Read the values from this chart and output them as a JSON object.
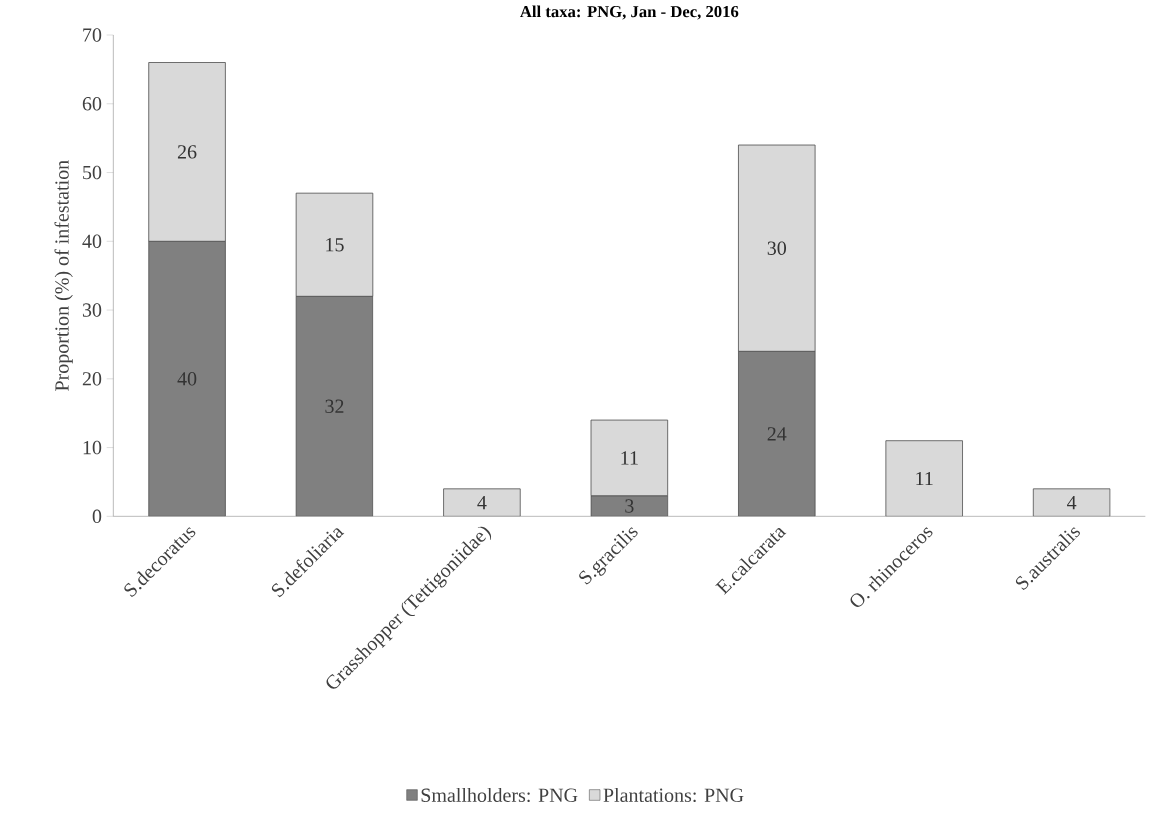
{
  "chart_data": {
    "type": "bar",
    "stacked": true,
    "title": "All taxa: PNG, Jan - Dec, 2016",
    "ylabel": "Proportion (%) of infestation",
    "categories": [
      "S.decoratus",
      "S.defoliaria",
      "Grasshopper (Tettigoniidae)",
      "S.gracilis",
      "E.calcarata",
      "O. rhinoceros",
      "S.australis"
    ],
    "series": [
      {
        "name": "Smallholders: PNG",
        "color": "#808080",
        "values": [
          40,
          32,
          null,
          3,
          24,
          null,
          null
        ]
      },
      {
        "name": "Plantations: PNG",
        "color": "#d9d9d9",
        "values": [
          26,
          15,
          4,
          11,
          30,
          11,
          4
        ]
      }
    ],
    "data_labels": true,
    "ylim": [
      0,
      70
    ],
    "yticks": [
      0,
      10,
      20,
      30,
      40,
      50,
      60,
      70
    ],
    "grid": false,
    "legend": "bottom"
  }
}
